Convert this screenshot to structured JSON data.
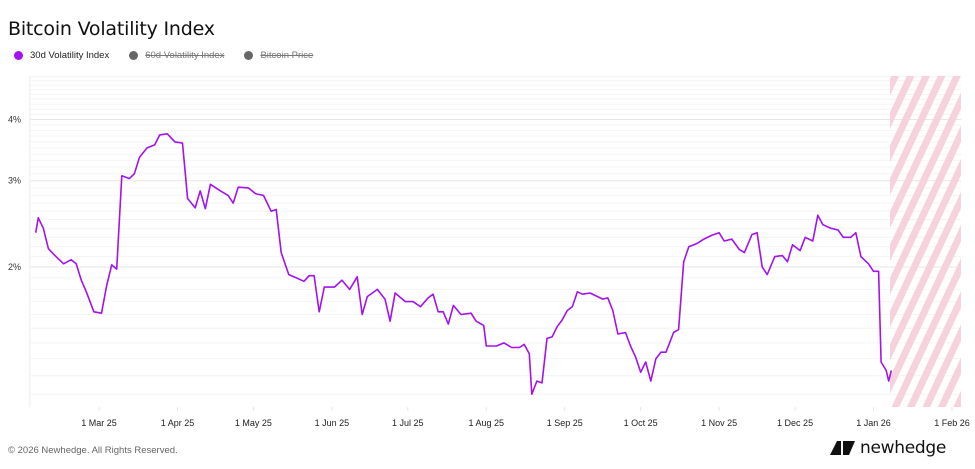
{
  "header": {
    "title": "Bitcoin Volatility Index"
  },
  "legend": [
    {
      "label": "30d Volatility Index",
      "color": "#a312f0",
      "active": true
    },
    {
      "label": "60d Volatility Index",
      "color": "#666666",
      "active": false
    },
    {
      "label": "Bitcoin Price",
      "color": "#666666",
      "active": false
    }
  ],
  "footer": {
    "copyright": "© 2026 Newhedge. All Rights Reserved.",
    "brand": "newhedge"
  },
  "colors": {
    "line": "#a312f0",
    "forecast_hatch": "#f6d3dc",
    "grid": "#efefef"
  },
  "chart_data": {
    "type": "line",
    "title": "Bitcoin Volatility Index",
    "xlabel": "",
    "ylabel": "",
    "y_scale": "log",
    "y_ticks": [
      "2%",
      "3%",
      "4%"
    ],
    "x_ticks": [
      "1 Mar 25",
      "1 Apr 25",
      "1 May 25",
      "1 Jun 25",
      "1 Jul 25",
      "1 Aug 25",
      "1 Sep 25",
      "1 Oct 25",
      "1 Nov 25",
      "1 Dec 25",
      "1 Jan 26",
      "1 Feb 26"
    ],
    "ylim": [
      1.05,
      5.2
    ],
    "legend_position": "top-left",
    "grid": true,
    "forecast_region": {
      "from": "8 Jan 26",
      "to": "4 Feb 26",
      "style": "hatched"
    },
    "series": [
      {
        "name": "30d Volatility Index",
        "unit": "%",
        "points": [
          [
            "2025-02-04",
            2.35
          ],
          [
            "2025-02-05",
            2.52
          ],
          [
            "2025-02-07",
            2.4
          ],
          [
            "2025-02-09",
            2.18
          ],
          [
            "2025-02-12",
            2.1
          ],
          [
            "2025-02-15",
            2.03
          ],
          [
            "2025-02-18",
            2.07
          ],
          [
            "2025-02-20",
            2.03
          ],
          [
            "2025-02-22",
            1.88
          ],
          [
            "2025-02-24",
            1.78
          ],
          [
            "2025-02-27",
            1.62
          ],
          [
            "2025-03-02",
            1.61
          ],
          [
            "2025-03-04",
            1.83
          ],
          [
            "2025-03-06",
            2.02
          ],
          [
            "2025-03-08",
            1.98
          ],
          [
            "2025-03-10",
            3.07
          ],
          [
            "2025-03-13",
            3.03
          ],
          [
            "2025-03-15",
            3.1
          ],
          [
            "2025-03-17",
            3.35
          ],
          [
            "2025-03-20",
            3.5
          ],
          [
            "2025-03-23",
            3.55
          ],
          [
            "2025-03-25",
            3.72
          ],
          [
            "2025-03-28",
            3.74
          ],
          [
            "2025-03-31",
            3.6
          ],
          [
            "2025-04-03",
            3.58
          ],
          [
            "2025-04-05",
            2.76
          ],
          [
            "2025-04-08",
            2.64
          ],
          [
            "2025-04-10",
            2.86
          ],
          [
            "2025-04-12",
            2.63
          ],
          [
            "2025-04-14",
            2.95
          ],
          [
            "2025-04-18",
            2.86
          ],
          [
            "2025-04-21",
            2.8
          ],
          [
            "2025-04-23",
            2.7
          ],
          [
            "2025-04-25",
            2.91
          ],
          [
            "2025-04-29",
            2.9
          ],
          [
            "2025-05-02",
            2.82
          ],
          [
            "2025-05-05",
            2.8
          ],
          [
            "2025-05-08",
            2.6
          ],
          [
            "2025-05-10",
            2.62
          ],
          [
            "2025-05-12",
            2.14
          ],
          [
            "2025-05-15",
            1.93
          ],
          [
            "2025-05-18",
            1.9
          ],
          [
            "2025-05-21",
            1.87
          ],
          [
            "2025-05-23",
            1.92
          ],
          [
            "2025-05-25",
            1.92
          ],
          [
            "2025-05-27",
            1.62
          ],
          [
            "2025-05-29",
            1.82
          ],
          [
            "2025-06-02",
            1.82
          ],
          [
            "2025-06-05",
            1.88
          ],
          [
            "2025-06-08",
            1.8
          ],
          [
            "2025-06-11",
            1.91
          ],
          [
            "2025-06-13",
            1.6
          ],
          [
            "2025-06-15",
            1.74
          ],
          [
            "2025-06-19",
            1.8
          ],
          [
            "2025-06-22",
            1.72
          ],
          [
            "2025-06-24",
            1.55
          ],
          [
            "2025-06-26",
            1.77
          ],
          [
            "2025-06-30",
            1.7
          ],
          [
            "2025-07-03",
            1.7
          ],
          [
            "2025-07-06",
            1.66
          ],
          [
            "2025-07-09",
            1.73
          ],
          [
            "2025-07-11",
            1.76
          ],
          [
            "2025-07-13",
            1.62
          ],
          [
            "2025-07-15",
            1.62
          ],
          [
            "2025-07-17",
            1.53
          ],
          [
            "2025-07-19",
            1.67
          ],
          [
            "2025-07-22",
            1.6
          ],
          [
            "2025-07-26",
            1.61
          ],
          [
            "2025-07-28",
            1.55
          ],
          [
            "2025-07-31",
            1.52
          ],
          [
            "2025-08-01",
            1.38
          ],
          [
            "2025-08-05",
            1.38
          ],
          [
            "2025-08-08",
            1.4
          ],
          [
            "2025-08-11",
            1.37
          ],
          [
            "2025-08-14",
            1.37
          ],
          [
            "2025-08-16",
            1.39
          ],
          [
            "2025-08-18",
            1.33
          ],
          [
            "2025-08-19",
            1.1
          ],
          [
            "2025-08-21",
            1.17
          ],
          [
            "2025-08-23",
            1.16
          ],
          [
            "2025-08-25",
            1.43
          ],
          [
            "2025-08-27",
            1.44
          ],
          [
            "2025-08-29",
            1.51
          ],
          [
            "2025-08-31",
            1.56
          ],
          [
            "2025-09-02",
            1.63
          ],
          [
            "2025-09-04",
            1.66
          ],
          [
            "2025-09-06",
            1.78
          ],
          [
            "2025-09-08",
            1.76
          ],
          [
            "2025-09-11",
            1.77
          ],
          [
            "2025-09-14",
            1.74
          ],
          [
            "2025-09-16",
            1.72
          ],
          [
            "2025-09-18",
            1.73
          ],
          [
            "2025-09-20",
            1.63
          ],
          [
            "2025-09-22",
            1.46
          ],
          [
            "2025-09-25",
            1.47
          ],
          [
            "2025-09-27",
            1.38
          ],
          [
            "2025-09-29",
            1.31
          ],
          [
            "2025-10-01",
            1.22
          ],
          [
            "2025-10-03",
            1.28
          ],
          [
            "2025-10-05",
            1.17
          ],
          [
            "2025-10-07",
            1.3
          ],
          [
            "2025-10-09",
            1.34
          ],
          [
            "2025-10-11",
            1.34
          ],
          [
            "2025-10-14",
            1.47
          ],
          [
            "2025-10-16",
            1.49
          ],
          [
            "2025-10-18",
            2.05
          ],
          [
            "2025-10-20",
            2.2
          ],
          [
            "2025-10-23",
            2.23
          ],
          [
            "2025-10-26",
            2.28
          ],
          [
            "2025-10-29",
            2.32
          ],
          [
            "2025-11-01",
            2.35
          ],
          [
            "2025-11-03",
            2.26
          ],
          [
            "2025-11-06",
            2.28
          ],
          [
            "2025-11-09",
            2.17
          ],
          [
            "2025-11-11",
            2.14
          ],
          [
            "2025-11-14",
            2.33
          ],
          [
            "2025-11-16",
            2.35
          ],
          [
            "2025-11-18",
            2.0
          ],
          [
            "2025-11-20",
            1.93
          ],
          [
            "2025-11-23",
            2.1
          ],
          [
            "2025-11-26",
            2.11
          ],
          [
            "2025-11-28",
            2.05
          ],
          [
            "2025-11-30",
            2.22
          ],
          [
            "2025-12-03",
            2.16
          ],
          [
            "2025-12-05",
            2.3
          ],
          [
            "2025-12-08",
            2.26
          ],
          [
            "2025-12-10",
            2.55
          ],
          [
            "2025-12-12",
            2.44
          ],
          [
            "2025-12-15",
            2.4
          ],
          [
            "2025-12-18",
            2.38
          ],
          [
            "2025-12-20",
            2.3
          ],
          [
            "2025-12-23",
            2.3
          ],
          [
            "2025-12-25",
            2.35
          ],
          [
            "2025-12-27",
            2.1
          ],
          [
            "2025-12-30",
            2.03
          ],
          [
            "2026-01-01",
            1.96
          ],
          [
            "2026-01-03",
            1.96
          ],
          [
            "2026-01-04",
            1.28
          ],
          [
            "2026-01-06",
            1.23
          ],
          [
            "2026-01-07",
            1.17
          ],
          [
            "2026-01-08",
            1.23
          ]
        ]
      }
    ]
  }
}
